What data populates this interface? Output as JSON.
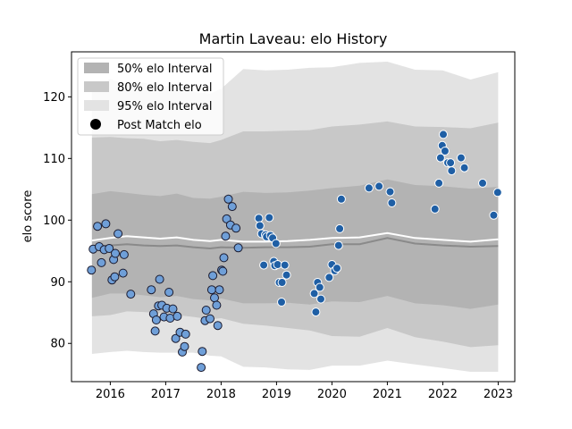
{
  "chart_data": {
    "type": "scatter",
    "title": "Martin Laveau: elo History",
    "xlabel": "",
    "ylabel": "elo score",
    "xlim": [
      2015.3,
      2023.3
    ],
    "ylim": [
      73.8,
      127.3
    ],
    "xticks": [
      2016,
      2017,
      2018,
      2019,
      2020,
      2021,
      2022,
      2023
    ],
    "yticks": [
      80,
      90,
      100,
      110,
      120
    ],
    "grid": false,
    "legend": {
      "placement": "upper-left",
      "entries": [
        "50% elo Interval",
        "80% elo Interval",
        "95% elo Interval",
        "Post Match elo"
      ]
    },
    "colors": {
      "band50": "#b3b3b3",
      "band80": "#c8c8c8",
      "band95": "#e3e3e3",
      "median": "#8a8a8a",
      "mean": "#ffffff",
      "point_early": "#6f9fd8",
      "point_late": "#1f5fa5",
      "point_edge": "#1a1a2e"
    },
    "intervals": {
      "x": [
        2015.67,
        2016.0,
        2016.3,
        2016.6,
        2016.9,
        2017.2,
        2017.5,
        2017.8,
        2018.0,
        2018.4,
        2018.8,
        2019.2,
        2019.6,
        2020.0,
        2020.5,
        2021.0,
        2021.5,
        2022.0,
        2022.5,
        2023.0
      ],
      "upper95": [
        121.3,
        122.9,
        121.9,
        122.3,
        121.6,
        121.9,
        120.8,
        120.5,
        121.3,
        124.5,
        124.3,
        124.4,
        124.7,
        124.8,
        125.5,
        125.7,
        124.4,
        124.3,
        122.8,
        124.0
      ],
      "upper80": [
        113.4,
        113.5,
        113.3,
        113.2,
        112.8,
        113.0,
        112.7,
        112.5,
        113.0,
        114.4,
        114.4,
        114.5,
        114.6,
        115.2,
        115.5,
        116.0,
        115.2,
        115.1,
        114.9,
        115.8
      ],
      "upper50": [
        104.2,
        104.7,
        104.4,
        104.1,
        103.9,
        104.3,
        103.6,
        103.5,
        103.8,
        104.6,
        104.4,
        104.5,
        104.8,
        105.2,
        105.6,
        106.6,
        105.7,
        105.5,
        105.1,
        105.4
      ],
      "mean": [
        96.7,
        97.1,
        97.4,
        97.2,
        97.0,
        97.2,
        96.8,
        96.6,
        96.8,
        96.5,
        96.5,
        96.6,
        96.8,
        97.1,
        97.2,
        97.9,
        97.1,
        96.8,
        96.5,
        96.9
      ],
      "median": [
        95.7,
        95.9,
        96.1,
        95.9,
        95.8,
        95.9,
        95.6,
        95.4,
        95.6,
        95.5,
        95.6,
        95.6,
        95.7,
        96.1,
        96.1,
        97.1,
        96.2,
        95.9,
        95.7,
        95.8
      ],
      "lower50": [
        87.4,
        88.1,
        88.1,
        87.8,
        87.5,
        87.7,
        87.2,
        87.0,
        87.3,
        86.5,
        86.5,
        86.6,
        86.3,
        86.8,
        86.7,
        87.7,
        86.5,
        86.2,
        85.6,
        86.3
      ],
      "lower80": [
        84.4,
        84.6,
        85.2,
        85.1,
        84.9,
        84.6,
        84.3,
        83.9,
        84.1,
        83.2,
        82.9,
        82.5,
        82.1,
        81.2,
        81.1,
        82.5,
        81.0,
        80.3,
        79.4,
        79.7
      ],
      "lower95": [
        78.3,
        78.6,
        78.8,
        78.6,
        78.5,
        78.5,
        78.5,
        78.0,
        77.9,
        76.2,
        76.1,
        75.8,
        75.7,
        76.4,
        76.4,
        77.2,
        76.6,
        76.0,
        75.4,
        75.4
      ]
    },
    "series": [
      {
        "name": "Post Match elo",
        "points": [
          [
            2015.66,
            91.9
          ],
          [
            2015.69,
            95.3
          ],
          [
            2015.77,
            99.0
          ],
          [
            2015.8,
            95.7
          ],
          [
            2015.84,
            93.1
          ],
          [
            2015.89,
            95.2
          ],
          [
            2015.92,
            99.4
          ],
          [
            2015.98,
            95.4
          ],
          [
            2016.03,
            90.3
          ],
          [
            2016.06,
            93.6
          ],
          [
            2016.08,
            90.8
          ],
          [
            2016.09,
            94.6
          ],
          [
            2016.14,
            97.8
          ],
          [
            2016.23,
            91.4
          ],
          [
            2016.25,
            94.4
          ],
          [
            2016.37,
            88.0
          ],
          [
            2016.74,
            88.7
          ],
          [
            2016.78,
            84.8
          ],
          [
            2016.81,
            82.0
          ],
          [
            2016.83,
            83.8
          ],
          [
            2016.87,
            86.1
          ],
          [
            2016.89,
            90.4
          ],
          [
            2016.93,
            86.2
          ],
          [
            2016.97,
            84.3
          ],
          [
            2017.02,
            85.7
          ],
          [
            2017.06,
            88.3
          ],
          [
            2017.08,
            84.1
          ],
          [
            2017.13,
            85.6
          ],
          [
            2017.18,
            80.8
          ],
          [
            2017.21,
            84.4
          ],
          [
            2017.26,
            81.8
          ],
          [
            2017.3,
            78.6
          ],
          [
            2017.34,
            79.5
          ],
          [
            2017.36,
            81.5
          ],
          [
            2017.64,
            76.1
          ],
          [
            2017.66,
            78.7
          ],
          [
            2017.71,
            83.7
          ],
          [
            2017.73,
            85.4
          ],
          [
            2017.8,
            84.0
          ],
          [
            2017.83,
            88.7
          ],
          [
            2017.85,
            91.0
          ],
          [
            2017.88,
            87.4
          ],
          [
            2017.92,
            86.2
          ],
          [
            2017.94,
            82.9
          ],
          [
            2017.97,
            88.7
          ],
          [
            2018.01,
            91.9
          ],
          [
            2018.03,
            91.7
          ],
          [
            2018.05,
            93.9
          ],
          [
            2018.08,
            97.4
          ],
          [
            2018.1,
            100.2
          ],
          [
            2018.13,
            103.4
          ],
          [
            2018.17,
            99.2
          ],
          [
            2018.2,
            102.2
          ],
          [
            2018.27,
            98.7
          ],
          [
            2018.31,
            95.5
          ],
          [
            2018.68,
            100.3
          ],
          [
            2018.7,
            99.1
          ],
          [
            2018.73,
            97.8
          ],
          [
            2018.77,
            92.7
          ],
          [
            2018.8,
            97.6
          ],
          [
            2018.82,
            97.3
          ],
          [
            2018.87,
            100.4
          ],
          [
            2018.89,
            97.5
          ],
          [
            2018.93,
            97.1
          ],
          [
            2018.95,
            93.3
          ],
          [
            2018.97,
            92.6
          ],
          [
            2018.99,
            96.2
          ],
          [
            2019.02,
            92.8
          ],
          [
            2019.05,
            89.9
          ],
          [
            2019.09,
            86.7
          ],
          [
            2019.1,
            89.9
          ],
          [
            2019.15,
            92.7
          ],
          [
            2019.18,
            91.1
          ],
          [
            2019.68,
            88.1
          ],
          [
            2019.71,
            85.1
          ],
          [
            2019.74,
            89.9
          ],
          [
            2019.78,
            89.1
          ],
          [
            2019.8,
            87.2
          ],
          [
            2019.95,
            90.7
          ],
          [
            2020.0,
            92.8
          ],
          [
            2020.05,
            91.8
          ],
          [
            2020.09,
            92.2
          ],
          [
            2020.12,
            95.9
          ],
          [
            2020.14,
            98.6
          ],
          [
            2020.17,
            103.4
          ],
          [
            2020.67,
            105.2
          ],
          [
            2020.85,
            105.5
          ],
          [
            2021.05,
            104.6
          ],
          [
            2021.08,
            102.8
          ],
          [
            2021.86,
            101.8
          ],
          [
            2021.93,
            106.0
          ],
          [
            2021.96,
            110.1
          ],
          [
            2021.99,
            112.1
          ],
          [
            2022.01,
            113.9
          ],
          [
            2022.04,
            111.2
          ],
          [
            2022.09,
            109.3
          ],
          [
            2022.14,
            109.3
          ],
          [
            2022.16,
            108.0
          ],
          [
            2022.33,
            110.1
          ],
          [
            2022.39,
            108.5
          ],
          [
            2022.72,
            106.0
          ],
          [
            2022.92,
            100.8
          ],
          [
            2022.99,
            104.5
          ]
        ]
      }
    ]
  }
}
